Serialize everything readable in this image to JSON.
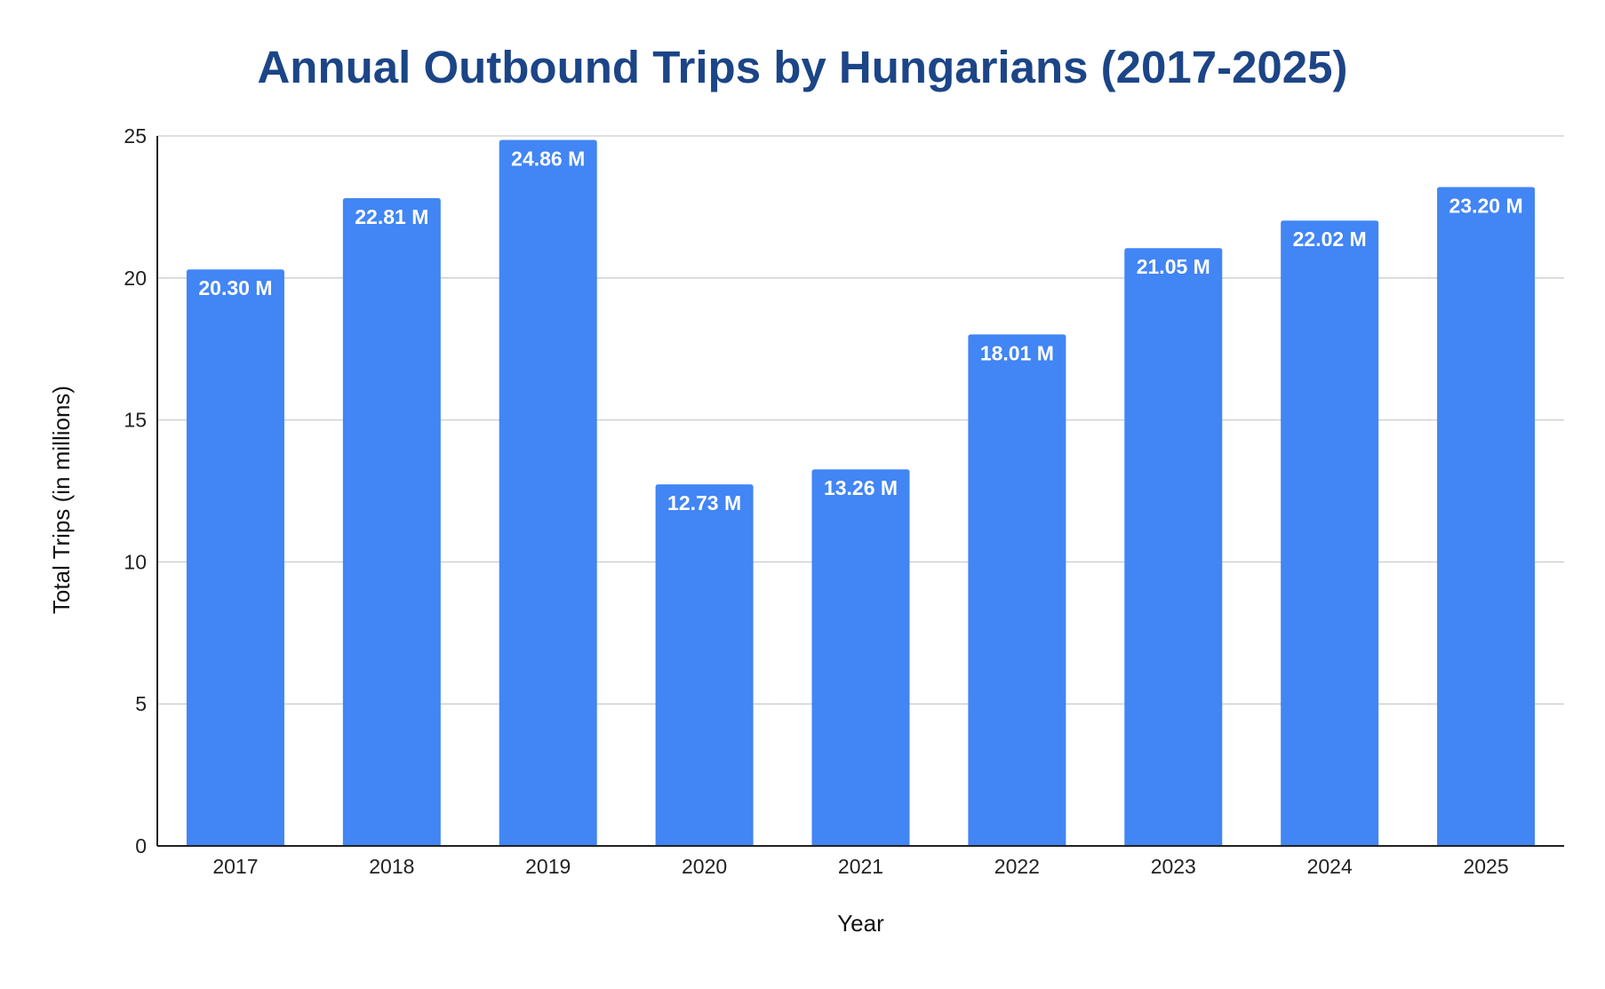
{
  "colors": {
    "bar": "#4285f4",
    "title": "#1c4587",
    "grid": "#cccccc",
    "axis": "#222222",
    "bar_label": "#ffffff"
  },
  "chart_data": {
    "type": "bar",
    "title": "Annual Outbound Trips by Hungarians (2017-2025)",
    "xlabel": "Year",
    "ylabel": "Total Trips (in millions)",
    "categories": [
      "2017",
      "2018",
      "2019",
      "2020",
      "2021",
      "2022",
      "2023",
      "2024",
      "2025"
    ],
    "values": [
      20.3,
      22.81,
      24.86,
      12.73,
      13.26,
      18.01,
      21.05,
      22.02,
      23.2
    ],
    "data_labels": [
      "20.30 M",
      "22.81 M",
      "24.86 M",
      "12.73 M",
      "13.26 M",
      "18.01 M",
      "21.05 M",
      "22.02 M",
      "23.20 M"
    ],
    "ylim": [
      0,
      25
    ],
    "yticks": [
      0,
      5,
      10,
      15,
      20,
      25
    ],
    "grid": true,
    "legend": "none"
  }
}
